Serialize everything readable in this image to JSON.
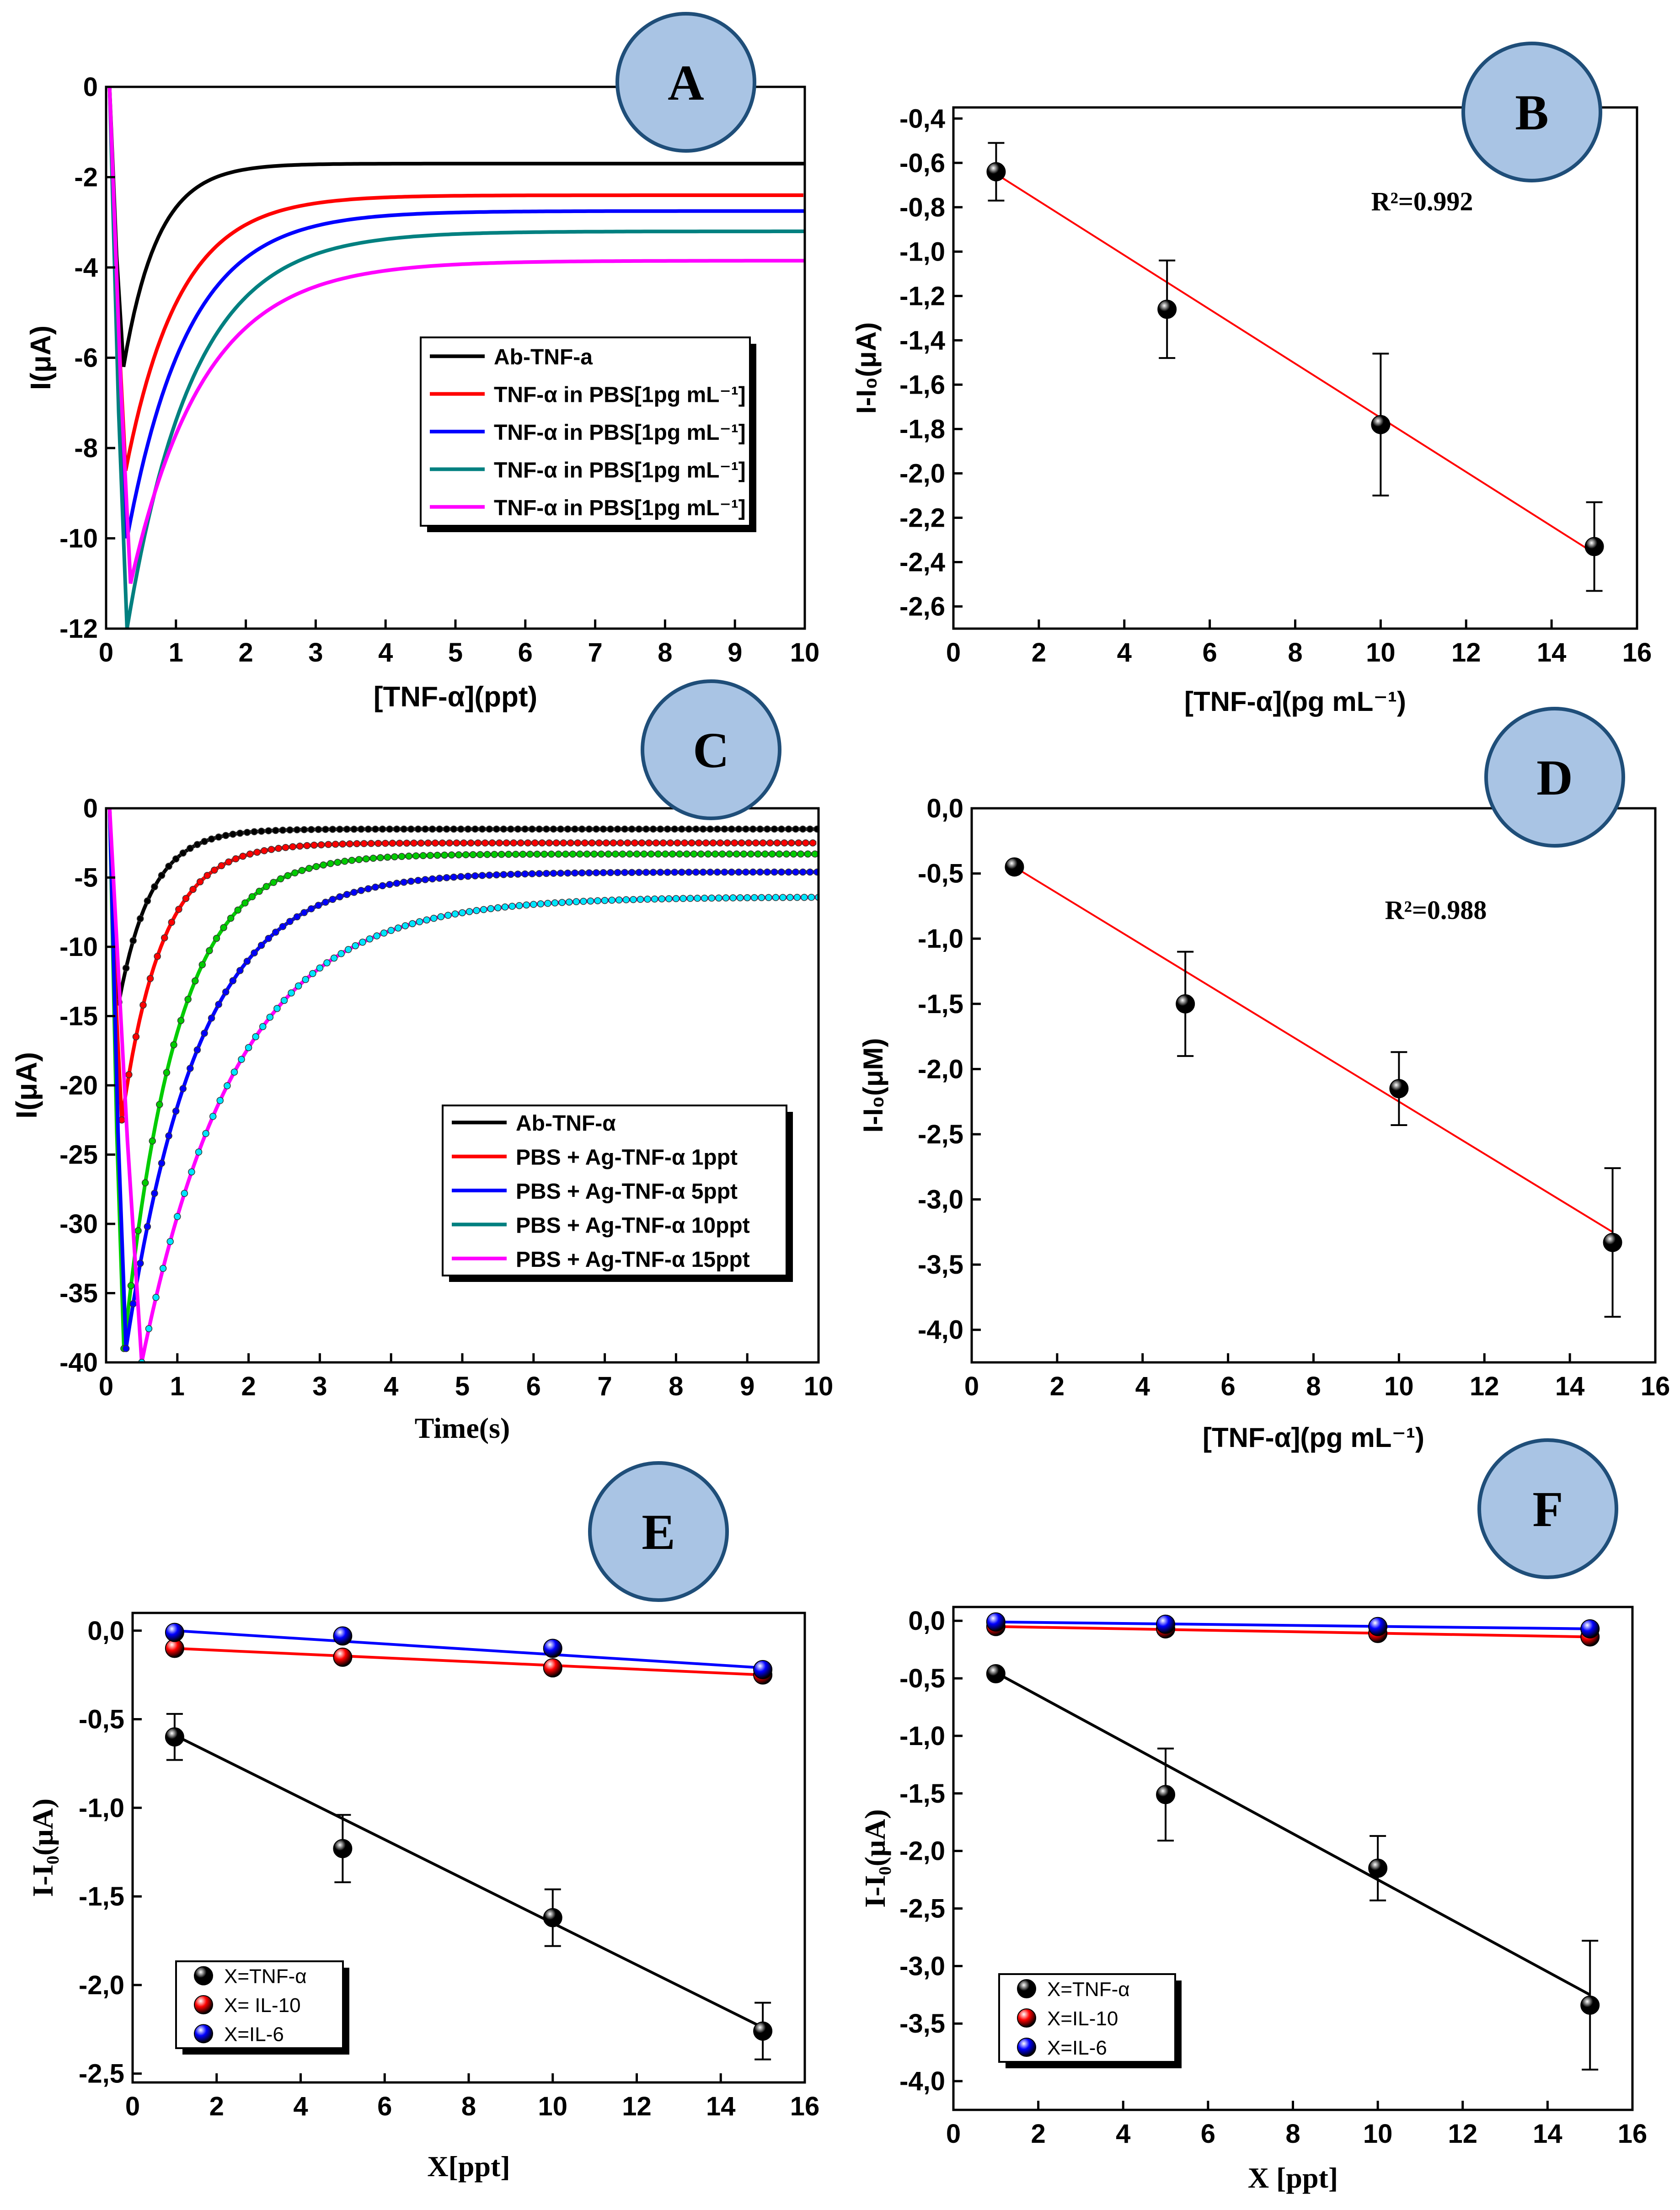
{
  "figure": "Six-panel electrochemical biosensor figure (TNF-alpha)",
  "colors": {
    "black": "#000000",
    "red": "#ff0000",
    "blue": "#0000ff",
    "teal": "#008080",
    "magenta": "#ff00ff",
    "green": "#00cc00",
    "cyan": "#00e5ff",
    "fit_red": "#ff0000",
    "badge_fill": "#a9c4e4",
    "badge_stroke": "#1f4e79"
  },
  "chart_data": [
    {
      "id": "A",
      "type": "line",
      "badge": "A",
      "xlabel": "[TNF-α](ppt)",
      "ylabel": "I(μA)",
      "xlim": [
        0,
        10
      ],
      "ylim": [
        -12,
        0
      ],
      "xticks": [
        "0",
        "1",
        "2",
        "3",
        "4",
        "5",
        "6",
        "7",
        "8",
        "9",
        "10"
      ],
      "yticks": [
        "0",
        "-2",
        "-4",
        "-6",
        "-8",
        "-10",
        "-12"
      ],
      "legend_position": "center-right",
      "series": [
        {
          "name": "Ab-TNF-a",
          "color": "black",
          "dip_x": 0.25,
          "dip_y": -6.2,
          "end_y": -1.7,
          "tau": 1.4
        },
        {
          "name": "TNF-α in PBS[1pg mL⁻¹]",
          "color": "red",
          "dip_x": 0.28,
          "dip_y": -8.5,
          "end_y": -2.4,
          "tau": 2.2
        },
        {
          "name": "TNF-α in PBS[1pg mL⁻¹]",
          "color": "blue",
          "dip_x": 0.3,
          "dip_y": -10.0,
          "end_y": -2.75,
          "tau": 2.5
        },
        {
          "name": "TNF-α in PBS[1pg mL⁻¹]",
          "color": "teal",
          "dip_x": 0.3,
          "dip_y": -12.0,
          "end_y": -3.2,
          "tau": 2.7
        },
        {
          "name": "TNF-α in PBS[1pg mL⁻¹]",
          "color": "magenta",
          "dip_x": 0.35,
          "dip_y": -11.0,
          "end_y": -3.85,
          "tau": 3.0
        }
      ]
    },
    {
      "id": "B",
      "type": "scatter",
      "badge": "B",
      "xlabel": "[TNF-α](pg mL⁻¹)",
      "ylabel": "I-I₀(μA)",
      "annotation": "R²=0.992",
      "xlim": [
        0,
        16
      ],
      "ylim": [
        -2.7,
        -0.35
      ],
      "xticks": [
        "0",
        "2",
        "4",
        "6",
        "8",
        "10",
        "12",
        "14",
        "16"
      ],
      "yticks": [
        "-0,4",
        "-0,6",
        "-0,8",
        "-1,0",
        "-1,2",
        "-1,4",
        "-1,6",
        "-1,8",
        "-2,0",
        "-2,2",
        "-2,4",
        "-2,6"
      ],
      "series": [
        {
          "name": "TNF-α",
          "color": "black",
          "points": [
            {
              "x": 1,
              "y": -0.64,
              "err": 0.13
            },
            {
              "x": 5,
              "y": -1.26,
              "err": 0.22
            },
            {
              "x": 10,
              "y": -1.78,
              "err": 0.32
            },
            {
              "x": 15,
              "y": -2.33,
              "err": 0.2
            }
          ],
          "fit": [
            {
              "x": 1,
              "y": -0.65
            },
            {
              "x": 15,
              "y": -2.36
            }
          ],
          "fit_color": "fit_red"
        }
      ]
    },
    {
      "id": "C",
      "type": "line",
      "badge": "C",
      "xlabel": "Time(s)",
      "ylabel": "I(μA)",
      "xlim": [
        0,
        10
      ],
      "ylim": [
        -40,
        0
      ],
      "xticks": [
        "0",
        "1",
        "2",
        "3",
        "4",
        "5",
        "6",
        "7",
        "8",
        "9",
        "10"
      ],
      "yticks": [
        "0",
        "-5",
        "-10",
        "-15",
        "-20",
        "-25",
        "-30",
        "-35",
        "-40"
      ],
      "legend_position": "center-right",
      "series": [
        {
          "name": "Ab-TNF-α",
          "color": "black",
          "marker": "black",
          "dip_x": 0.18,
          "dip_y": -14,
          "end_y": -1.5,
          "tau": 1.3
        },
        {
          "name": "PBS + Ag-TNF-α  1ppt",
          "color": "red",
          "marker": "red",
          "dip_x": 0.22,
          "dip_y": -22.5,
          "end_y": -2.5,
          "tau": 1.6
        },
        {
          "name": "PBS + Ag-TNF-α  5ppt",
          "color": "green",
          "marker": "green",
          "dip_x": 0.25,
          "dip_y": -39,
          "end_y": -3.3,
          "tau": 2.1
        },
        {
          "name": "PBS + Ag-TNF-α  10ppt",
          "color": "blue",
          "marker": "blue",
          "dip_x": 0.28,
          "dip_y": -39,
          "end_y": -4.6,
          "tau": 2.9
        },
        {
          "name": "PBS + Ag-TNF-α   15ppt",
          "color": "magenta",
          "marker": "cyan",
          "dip_x": 0.5,
          "dip_y": -40,
          "end_y": -6.4,
          "tau": 3.8
        }
      ],
      "legend_colors": [
        "black",
        "red",
        "blue",
        "teal",
        "magenta"
      ]
    },
    {
      "id": "D",
      "type": "scatter",
      "badge": "D",
      "xlabel": "[TNF-α](pg mL⁻¹)",
      "ylabel": "I-I₀(μM)",
      "annotation": "R²=0.988",
      "xlim": [
        0,
        16
      ],
      "ylim": [
        -4.25,
        0
      ],
      "xticks": [
        "0",
        "2",
        "4",
        "6",
        "8",
        "10",
        "12",
        "14",
        "16"
      ],
      "yticks": [
        "0,0",
        "-0,5",
        "-1,0",
        "-1,5",
        "-2,0",
        "-2,5",
        "-3,0",
        "-3,5",
        "-4,0"
      ],
      "series": [
        {
          "name": "TNF-α",
          "color": "black",
          "points": [
            {
              "x": 1,
              "y": -0.45,
              "err": 0.0
            },
            {
              "x": 5,
              "y": -1.5,
              "err": 0.4
            },
            {
              "x": 10,
              "y": -2.15,
              "err": 0.28
            },
            {
              "x": 15,
              "y": -3.33,
              "err": 0.57
            }
          ],
          "fit": [
            {
              "x": 1,
              "y": -0.45
            },
            {
              "x": 15,
              "y": -3.25
            }
          ],
          "fit_color": "fit_red"
        }
      ]
    },
    {
      "id": "E",
      "type": "scatter",
      "badge": "E",
      "xlabel": "X[ppt]",
      "ylabel": "I-I₀(μA)",
      "xlim": [
        0,
        16
      ],
      "ylim": [
        -2.55,
        0.1
      ],
      "xticks": [
        "0",
        "2",
        "4",
        "6",
        "8",
        "10",
        "12",
        "14",
        "16"
      ],
      "yticks": [
        "0,0",
        "-0,5",
        "-1,0",
        "-1,5",
        "-2,0",
        "-2,5"
      ],
      "legend_position": "bottom-left",
      "series": [
        {
          "name": "X=TNF-α",
          "color": "black",
          "points": [
            {
              "x": 1,
              "y": -0.6,
              "err": 0.13
            },
            {
              "x": 5,
              "y": -1.23,
              "err": 0.19
            },
            {
              "x": 10,
              "y": -1.62,
              "err": 0.16
            },
            {
              "x": 15,
              "y": -2.26,
              "err": 0.16
            }
          ],
          "fit": [
            {
              "x": 1,
              "y": -0.59
            },
            {
              "x": 15,
              "y": -2.24
            }
          ],
          "fit_color": "black"
        },
        {
          "name": "X= IL-10",
          "color": "red",
          "points": [
            {
              "x": 1,
              "y": -0.1,
              "err": 0
            },
            {
              "x": 5,
              "y": -0.15,
              "err": 0
            },
            {
              "x": 10,
              "y": -0.21,
              "err": 0
            },
            {
              "x": 15,
              "y": -0.25,
              "err": 0
            }
          ],
          "fit": [
            {
              "x": 1,
              "y": -0.1
            },
            {
              "x": 15,
              "y": -0.25
            }
          ],
          "fit_color": "red"
        },
        {
          "name": "X=IL-6",
          "color": "blue",
          "points": [
            {
              "x": 1,
              "y": -0.01,
              "err": 0
            },
            {
              "x": 5,
              "y": -0.03,
              "err": 0
            },
            {
              "x": 10,
              "y": -0.1,
              "err": 0
            },
            {
              "x": 15,
              "y": -0.22,
              "err": 0
            }
          ],
          "fit": [
            {
              "x": 1,
              "y": 0.0
            },
            {
              "x": 15,
              "y": -0.21
            }
          ],
          "fit_color": "blue"
        }
      ]
    },
    {
      "id": "F",
      "type": "scatter",
      "badge": "F",
      "xlabel": "X [ppt]",
      "ylabel": "I-I₀(μA)",
      "xlim": [
        0,
        16
      ],
      "ylim": [
        -4.25,
        0.12
      ],
      "xticks": [
        "0",
        "2",
        "4",
        "6",
        "8",
        "10",
        "12",
        "14",
        "16"
      ],
      "yticks": [
        "0,0",
        "-0,5",
        "-1,0",
        "-1,5",
        "-2,0",
        "-2,5",
        "-3,0",
        "-3,5",
        "-4,0"
      ],
      "legend_position": "bottom-left",
      "series": [
        {
          "name": "X=TNF-α",
          "color": "black",
          "points": [
            {
              "x": 1,
              "y": -0.46,
              "err": 0
            },
            {
              "x": 5,
              "y": -1.51,
              "err": 0.4
            },
            {
              "x": 10,
              "y": -2.15,
              "err": 0.28
            },
            {
              "x": 15,
              "y": -3.34,
              "err": 0.56
            }
          ],
          "fit": [
            {
              "x": 1,
              "y": -0.45
            },
            {
              "x": 15,
              "y": -3.25
            }
          ],
          "fit_color": "black"
        },
        {
          "name": "X=IL-10",
          "color": "red",
          "points": [
            {
              "x": 1,
              "y": -0.05,
              "err": 0
            },
            {
              "x": 5,
              "y": -0.07,
              "err": 0
            },
            {
              "x": 10,
              "y": -0.11,
              "err": 0
            },
            {
              "x": 15,
              "y": -0.14,
              "err": 0
            }
          ],
          "fit": [
            {
              "x": 1,
              "y": -0.05
            },
            {
              "x": 15,
              "y": -0.14
            }
          ],
          "fit_color": "red"
        },
        {
          "name": "X=IL-6",
          "color": "blue",
          "points": [
            {
              "x": 1,
              "y": -0.01,
              "err": 0
            },
            {
              "x": 5,
              "y": -0.03,
              "err": 0
            },
            {
              "x": 10,
              "y": -0.05,
              "err": 0
            },
            {
              "x": 15,
              "y": -0.07,
              "err": 0
            }
          ],
          "fit": [
            {
              "x": 1,
              "y": -0.01
            },
            {
              "x": 15,
              "y": -0.07
            }
          ],
          "fit_color": "blue"
        }
      ]
    }
  ]
}
